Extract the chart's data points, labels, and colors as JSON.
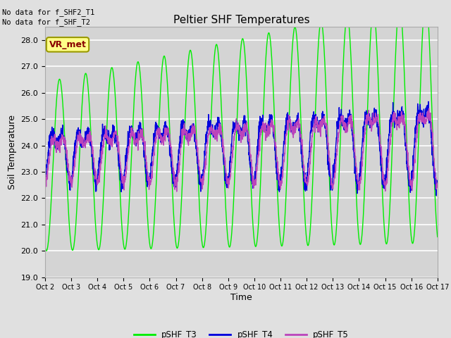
{
  "title": "Peltier SHF Temperatures",
  "ylabel": "Soil Temperature",
  "xlabel": "Time",
  "text_top_left": [
    "No data for f_SHF2_T1",
    "No data for f_SHF_T2"
  ],
  "vr_met_label": "VR_met",
  "ylim": [
    19.0,
    28.5
  ],
  "yticks": [
    19.0,
    20.0,
    21.0,
    22.0,
    23.0,
    24.0,
    25.0,
    26.0,
    27.0,
    28.0
  ],
  "xtick_labels": [
    "Oct 2",
    "Oct 3",
    "Oct 4",
    "Oct 5",
    "Oct 6",
    "Oct 7",
    "Oct 8",
    "Oct 9",
    "Oct 10",
    "Oct 11",
    "Oct 12",
    "Oct 13",
    "Oct 14",
    "Oct 15",
    "Oct 16",
    "Oct 17"
  ],
  "bg_color": "#e0e0e0",
  "plot_bg_color": "#d4d4d4",
  "grid_color": "#ffffff",
  "colors": {
    "pSHF_T3": "#00ee00",
    "pSHF_T4": "#0000dd",
    "pSHF_T5": "#bb44bb"
  },
  "legend_labels": [
    "pSHF_T3",
    "pSHF_T4",
    "pSHF_T5"
  ],
  "vr_met_box_color": "#ffff88",
  "vr_met_text_color": "#880000",
  "vr_met_border_color": "#999900",
  "n_days": 15,
  "pts_per_day": 144
}
